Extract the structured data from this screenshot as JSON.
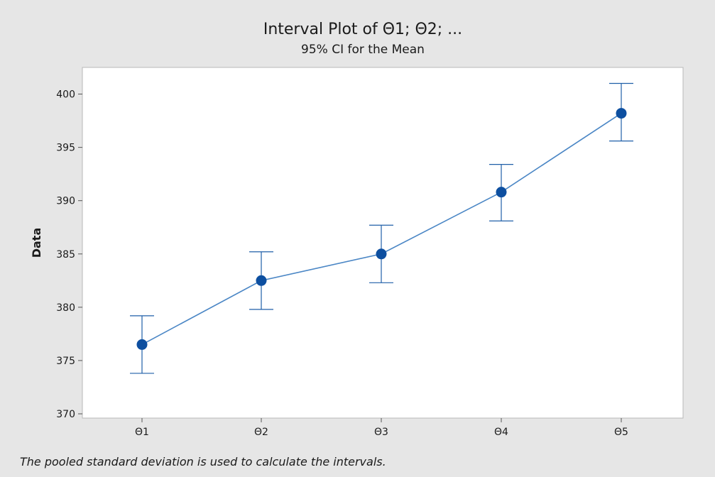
{
  "chart_data": {
    "type": "interval",
    "title": "Interval Plot of Θ1; Θ2; ...",
    "subtitle": "95% CI for the Mean",
    "xlabel": "",
    "ylabel": "Data",
    "categories": [
      "Θ1",
      "Θ2",
      "Θ3",
      "Θ4",
      "Θ5"
    ],
    "means": [
      376.5,
      382.5,
      385.0,
      390.8,
      398.2
    ],
    "ci_lower": [
      373.8,
      379.8,
      382.3,
      388.1,
      395.6
    ],
    "ci_upper": [
      379.2,
      385.2,
      387.7,
      393.4,
      401.0
    ],
    "ylim": [
      369.6,
      402.5
    ],
    "yticks": [
      370,
      375,
      380,
      385,
      390,
      395,
      400
    ],
    "grid": false,
    "colors": {
      "series": "#1f5fa8",
      "marker": "#0d4fa0",
      "line": "#4a86c5"
    }
  },
  "footnote": "The pooled standard deviation is used to calculate the intervals."
}
